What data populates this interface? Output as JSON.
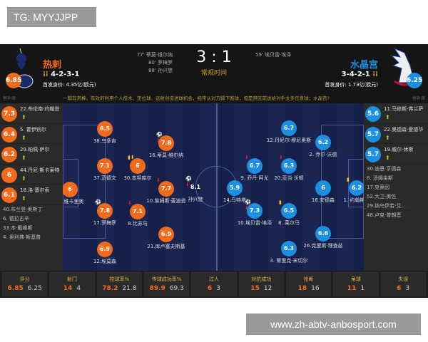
{
  "tg_label": "TG: MYYJJPP",
  "watermark": "www.zh-abtv-anbosport.com",
  "colors": {
    "home": "#f26a1b",
    "away": "#1d8fe0"
  },
  "match": {
    "score": "3 : 1",
    "status": "常规时间",
    "home": {
      "name": "热刺",
      "formation": "4-2-3-1",
      "value": "首发身价: 4.35亿(欧元)",
      "rating": "6.85",
      "logo": "tottenham-logo",
      "events": [
        "77' 蒂莫·维尔纳",
        "80' 罗梅罗",
        "88' 孙兴慜"
      ]
    },
    "away": {
      "name": "水晶宫",
      "formation": "3-4-2-1",
      "value": "首发身价: 1.73亿(欧元)",
      "rating": "6.25",
      "logo": "crystal-palace-logo",
      "events": [
        "59' 埃贝雷·埃泽"
      ]
    }
  },
  "bench_label": "替补席",
  "commentary": "一脚非常棒，有效的利用个人技术、定位球、远射创造进球机会，经常从对方脚下断球，但是禁区前送给对手太多任意球；水晶宫?",
  "home_bench": {
    "subs": [
      {
        "rating": "7.3",
        "name": "22.布伦南·约翰逊"
      },
      {
        "rating": "6.4",
        "name": "5. 霍伊别尔"
      },
      {
        "rating": "6.2",
        "name": "29.帕佩·萨尔"
      },
      {
        "rating": "6",
        "name": "44.丹尼·斯卡莱特"
      },
      {
        "rating": "6.1",
        "name": "18.洛·塞尔索"
      }
    ],
    "unused": [
      "40.布兰登·奥斯丁",
      "6. 德拉古辛",
      "33.本·戴维斯",
      "4. 奥利弗·斯基普"
    ]
  },
  "away_bench": {
    "subs": [
      {
        "rating": "5.6",
        "name": "11.马修斯·弗兰萨"
      },
      {
        "rating": "5.7",
        "name": "22.奥德森·爱德华"
      },
      {
        "rating": "5.7",
        "name": "19.威尔·休斯"
      }
    ],
    "unused": [
      "30.迪恩·亨德森",
      "8. 汤姆金斯",
      "17.克莱因",
      "52.大卫·奥佐",
      "29.纳乌伊若·艾...",
      "48.卢克·普朗恩"
    ]
  },
  "home_players": [
    {
      "rating": "6.5",
      "name": "38.乌多吉"
    },
    {
      "rating": "7.8",
      "name": "16.蒂莫·维尔纳",
      "events": "goal, sub-out"
    },
    {
      "rating": "7.1",
      "name": "37.范德文"
    },
    {
      "rating": "6",
      "name": "30.本坦库尔",
      "events": "yellow-card, sub-out"
    },
    {
      "rating": "7.7",
      "name": "10.詹姆斯·麦迪逊",
      "events": "assist, sub-out"
    },
    {
      "rating": "8.1",
      "name": "孙兴慜",
      "events": "goal, sub-out",
      "mvp": true
    },
    {
      "rating": "6",
      "name": "13.维卡里奥"
    },
    {
      "rating": "7.8",
      "name": "17.罗梅罗",
      "events": "goal"
    },
    {
      "rating": "7.1",
      "name": "8.比苏马",
      "events": "sub-out"
    },
    {
      "rating": "6.9",
      "name": "21.库卢塞夫斯基"
    },
    {
      "rating": "6.9",
      "name": "12.埃莫森"
    }
  ],
  "away_players": [
    {
      "rating": "6.7",
      "name": "12.丹尼尔·穆尼奥斯"
    },
    {
      "rating": "6.2",
      "name": "2. 乔尔·沃德"
    },
    {
      "rating": "6.7",
      "name": "9. 乔丹·阿尤",
      "events": "sub-out"
    },
    {
      "rating": "6.3",
      "name": "20.亚当·沃顿",
      "events": "sub-out"
    },
    {
      "rating": "5.9",
      "name": "14.马特塔"
    },
    {
      "rating": "6",
      "name": "16.安德森"
    },
    {
      "rating": "6.2",
      "name": "1. 约翰斯通",
      "events": "yellow-card"
    },
    {
      "rating": "7.3",
      "name": "10.埃贝雷·埃泽",
      "events": "goal, sub-out"
    },
    {
      "rating": "6.5",
      "name": "8. 莱尔马",
      "events": "yellow-card"
    },
    {
      "rating": "6.6",
      "name": "26.克里斯·理查兹"
    },
    {
      "rating": "6.3",
      "name": "3. 蒂里克·米切尔"
    }
  ],
  "stats": [
    {
      "label": "评分",
      "home": "6.85",
      "away": "6.25"
    },
    {
      "label": "射门",
      "home": "14",
      "away": "4"
    },
    {
      "label": "控球率%",
      "home": "78.2",
      "away": "21.8"
    },
    {
      "label": "传球成功率%",
      "home": "89.9",
      "away": "69.3"
    },
    {
      "label": "过人",
      "home": "6",
      "away": "3"
    },
    {
      "label": "对抗成功",
      "home": "15",
      "away": "12"
    },
    {
      "label": "抢断",
      "home": "18",
      "away": "16"
    },
    {
      "label": "角球",
      "home": "11",
      "away": "1"
    },
    {
      "label": "失误",
      "home": "6",
      "away": "3"
    }
  ]
}
